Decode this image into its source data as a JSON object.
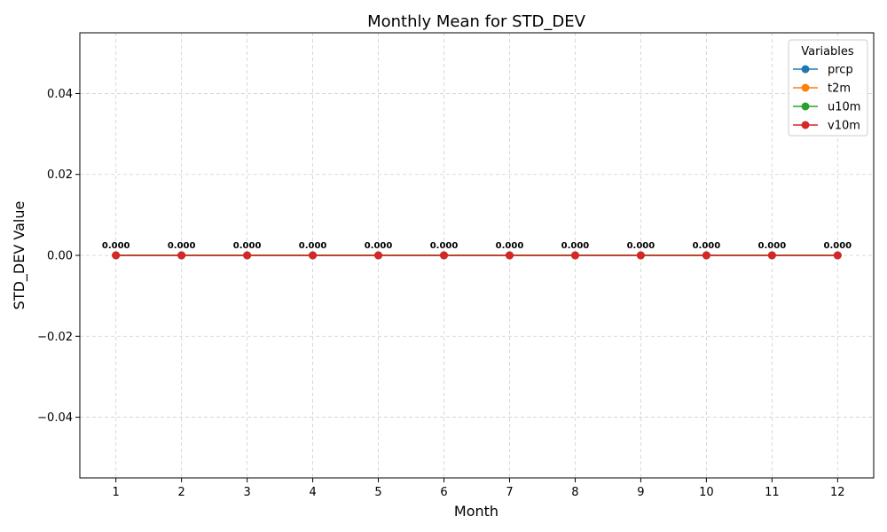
{
  "chart_data": {
    "type": "line",
    "title": "Monthly Mean for STD_DEV",
    "xlabel": "Month",
    "ylabel": "STD_DEV Value",
    "x": [
      1,
      2,
      3,
      4,
      5,
      6,
      7,
      8,
      9,
      10,
      11,
      12
    ],
    "x_ticks": [
      "1",
      "2",
      "3",
      "4",
      "5",
      "6",
      "7",
      "8",
      "9",
      "10",
      "11",
      "12"
    ],
    "xlim": [
      0.45,
      12.55
    ],
    "ylim": [
      -0.055,
      0.055
    ],
    "y_ticks": [
      -0.04,
      -0.02,
      0.0,
      0.02,
      0.04
    ],
    "y_tick_labels": [
      "−0.04",
      "−0.02",
      "0.00",
      "0.02",
      "0.04"
    ],
    "grid": true,
    "legend": {
      "title": "Variables",
      "placement": "top-right"
    },
    "series": [
      {
        "name": "prcp",
        "color": "#1f77b4",
        "values": [
          0,
          0,
          0,
          0,
          0,
          0,
          0,
          0,
          0,
          0,
          0,
          0
        ]
      },
      {
        "name": "t2m",
        "color": "#ff7f0e",
        "values": [
          0,
          0,
          0,
          0,
          0,
          0,
          0,
          0,
          0,
          0,
          0,
          0
        ]
      },
      {
        "name": "u10m",
        "color": "#2ca02c",
        "values": [
          0,
          0,
          0,
          0,
          0,
          0,
          0,
          0,
          0,
          0,
          0,
          0
        ]
      },
      {
        "name": "v10m",
        "color": "#d62728",
        "values": [
          0,
          0,
          0,
          0,
          0,
          0,
          0,
          0,
          0,
          0,
          0,
          0
        ]
      }
    ],
    "data_labels": [
      "0.000",
      "0.000",
      "0.000",
      "0.000",
      "0.000",
      "0.000",
      "0.000",
      "0.000",
      "0.000",
      "0.000",
      "0.000",
      "0.000"
    ]
  }
}
